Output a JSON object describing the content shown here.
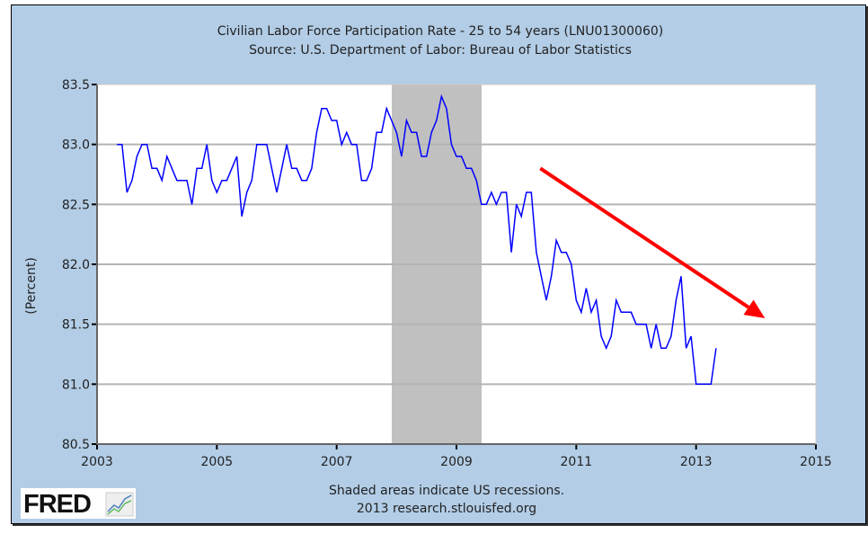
{
  "chart_data": {
    "type": "line",
    "title": "Civilian Labor Force Participation Rate - 25 to 54 years (LNU01300060)",
    "subtitle": "Source: U.S. Department of Labor: Bureau of Labor Statistics",
    "xlabel": "",
    "ylabel": "(Percent)",
    "xlim": [
      2003,
      2015
    ],
    "ylim": [
      80.5,
      83.5
    ],
    "x_ticks": [
      "2003",
      "2005",
      "2007",
      "2009",
      "2011",
      "2013",
      "2015"
    ],
    "y_ticks": [
      "83.5",
      "83.0",
      "82.5",
      "82.0",
      "81.5",
      "81.0",
      "80.5"
    ],
    "grid": true,
    "start": "2003-05",
    "frequency": "monthly",
    "series": [
      {
        "name": "LNU01300060",
        "color": "#0000ff",
        "values": [
          83.0,
          83.0,
          82.6,
          82.7,
          82.9,
          83.0,
          83.0,
          82.8,
          82.8,
          82.7,
          82.9,
          82.8,
          82.7,
          82.7,
          82.7,
          82.5,
          82.8,
          82.8,
          83.0,
          82.7,
          82.6,
          82.7,
          82.7,
          82.8,
          82.9,
          82.4,
          82.6,
          82.7,
          83.0,
          83.0,
          83.0,
          82.8,
          82.6,
          82.8,
          83.0,
          82.8,
          82.8,
          82.7,
          82.7,
          82.8,
          83.1,
          83.3,
          83.3,
          83.2,
          83.2,
          83.0,
          83.1,
          83.0,
          83.0,
          82.7,
          82.7,
          82.8,
          83.1,
          83.1,
          83.3,
          83.2,
          83.1,
          82.9,
          83.2,
          83.1,
          83.1,
          82.9,
          82.9,
          83.1,
          83.2,
          83.4,
          83.3,
          83.0,
          82.9,
          82.9,
          82.8,
          82.8,
          82.7,
          82.5,
          82.5,
          82.6,
          82.5,
          82.6,
          82.6,
          82.1,
          82.5,
          82.4,
          82.6,
          82.6,
          82.1,
          81.9,
          81.7,
          81.9,
          82.2,
          82.1,
          82.1,
          82.0,
          81.7,
          81.6,
          81.8,
          81.6,
          81.7,
          81.4,
          81.3,
          81.4,
          81.7,
          81.6,
          81.6,
          81.6,
          81.5,
          81.5,
          81.5,
          81.3,
          81.5,
          81.3,
          81.3,
          81.4,
          81.7,
          81.9,
          81.3,
          81.4,
          81.0,
          81.0,
          81.0,
          81.0,
          81.3
        ]
      }
    ],
    "recessions": [
      [
        2007.92,
        2009.42
      ]
    ],
    "recession_color": "#c0c0c0",
    "annotations": [
      {
        "type": "arrow",
        "color": "#ff0000",
        "from": [
          2010.4,
          82.8
        ],
        "to": [
          2014.15,
          81.55
        ]
      }
    ],
    "footnote": "Shaded areas indicate US recessions.",
    "credit": "2013 research.stlouisfed.org"
  },
  "logo": "FRED"
}
